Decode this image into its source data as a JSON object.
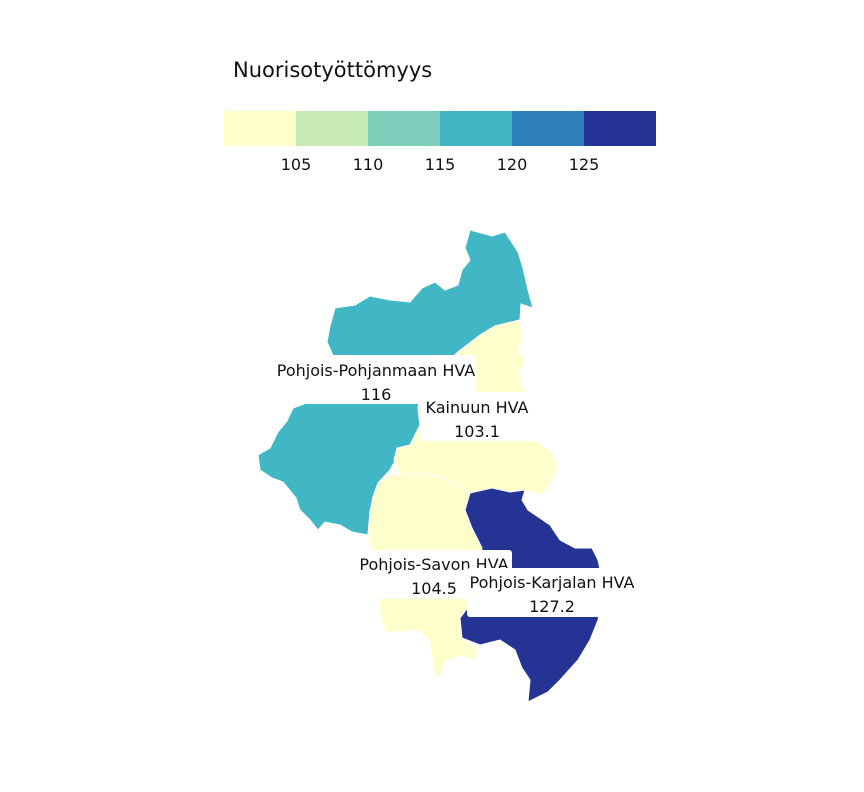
{
  "legend": {
    "title": "Nuorisotyöttömyys",
    "ticks": [
      "105",
      "110",
      "115",
      "120",
      "125"
    ],
    "colors": [
      "#ffffcc",
      "#c7e9b4",
      "#7fcdbb",
      "#41b6c4",
      "#2c7fb8",
      "#253494"
    ]
  },
  "regions": [
    {
      "name": "Pohjois-Pohjanmaan HVA",
      "value": "116",
      "color": "#41b6c4"
    },
    {
      "name": "Kainuun HVA",
      "value": "103.1",
      "color": "#ffffcc"
    },
    {
      "name": "Pohjois-Savon HVA",
      "value": "104.5",
      "color": "#ffffcc"
    },
    {
      "name": "Pohjois-Karjalan HVA",
      "value": "127.2",
      "color": "#253494"
    }
  ]
}
